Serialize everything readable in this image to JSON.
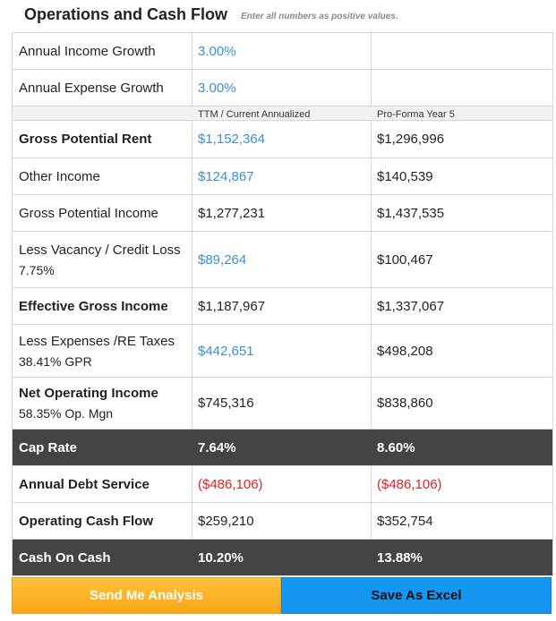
{
  "header": {
    "title": "Operations and Cash Flow",
    "subtitle": "Enter all numbers as positive values."
  },
  "growth": {
    "income_label": "Annual Income Growth",
    "income_value": "3.00%",
    "expense_label": "Annual Expense Growth",
    "expense_value": "3.00%"
  },
  "columns": {
    "current": "TTM / Current Annualized",
    "proforma": "Pro-Forma Year  5"
  },
  "rows": {
    "gpr": {
      "label": "Gross Potential Rent",
      "current": "$1,152,364",
      "proforma": "$1,296,996"
    },
    "other": {
      "label": "Other Income",
      "current": "$124,867",
      "proforma": "$140,539"
    },
    "gpi": {
      "label": "Gross Potential Income",
      "current": "$1,277,231",
      "proforma": "$1,437,535"
    },
    "vacancy": {
      "label": "Less Vacancy / Credit Loss",
      "sub": "7.75%",
      "current": "$89,264",
      "proforma": "$100,467"
    },
    "egi": {
      "label": "Effective Gross Income",
      "current": "$1,187,967",
      "proforma": "$1,337,067"
    },
    "expenses": {
      "label": "Less Expenses /RE Taxes",
      "sub": "38.41% GPR",
      "current": "$442,651",
      "proforma": "$498,208"
    },
    "noi": {
      "label": "Net Operating Income",
      "sub": "58.35% Op. Mgn",
      "current": "$745,316",
      "proforma": "$838,860"
    },
    "cap": {
      "label": "Cap Rate",
      "current": "7.64%",
      "proforma": "8.60%"
    },
    "debt": {
      "label": "Annual Debt Service",
      "current": "($486,106)",
      "proforma": "($486,106)"
    },
    "ocf": {
      "label": "Operating Cash Flow",
      "current": "$259,210",
      "proforma": "$352,754"
    },
    "coc": {
      "label": "Cash On Cash",
      "current": "10.20%",
      "proforma": "13.88%"
    }
  },
  "buttons": {
    "send": "Send Me Analysis",
    "excel": "Save As Excel"
  },
  "colors": {
    "accent_blue": "#3a8fd0",
    "negative_red": "#e02020",
    "dark_row": "#444444",
    "send_button": "#f9a615",
    "excel_button": "#1596f0"
  }
}
